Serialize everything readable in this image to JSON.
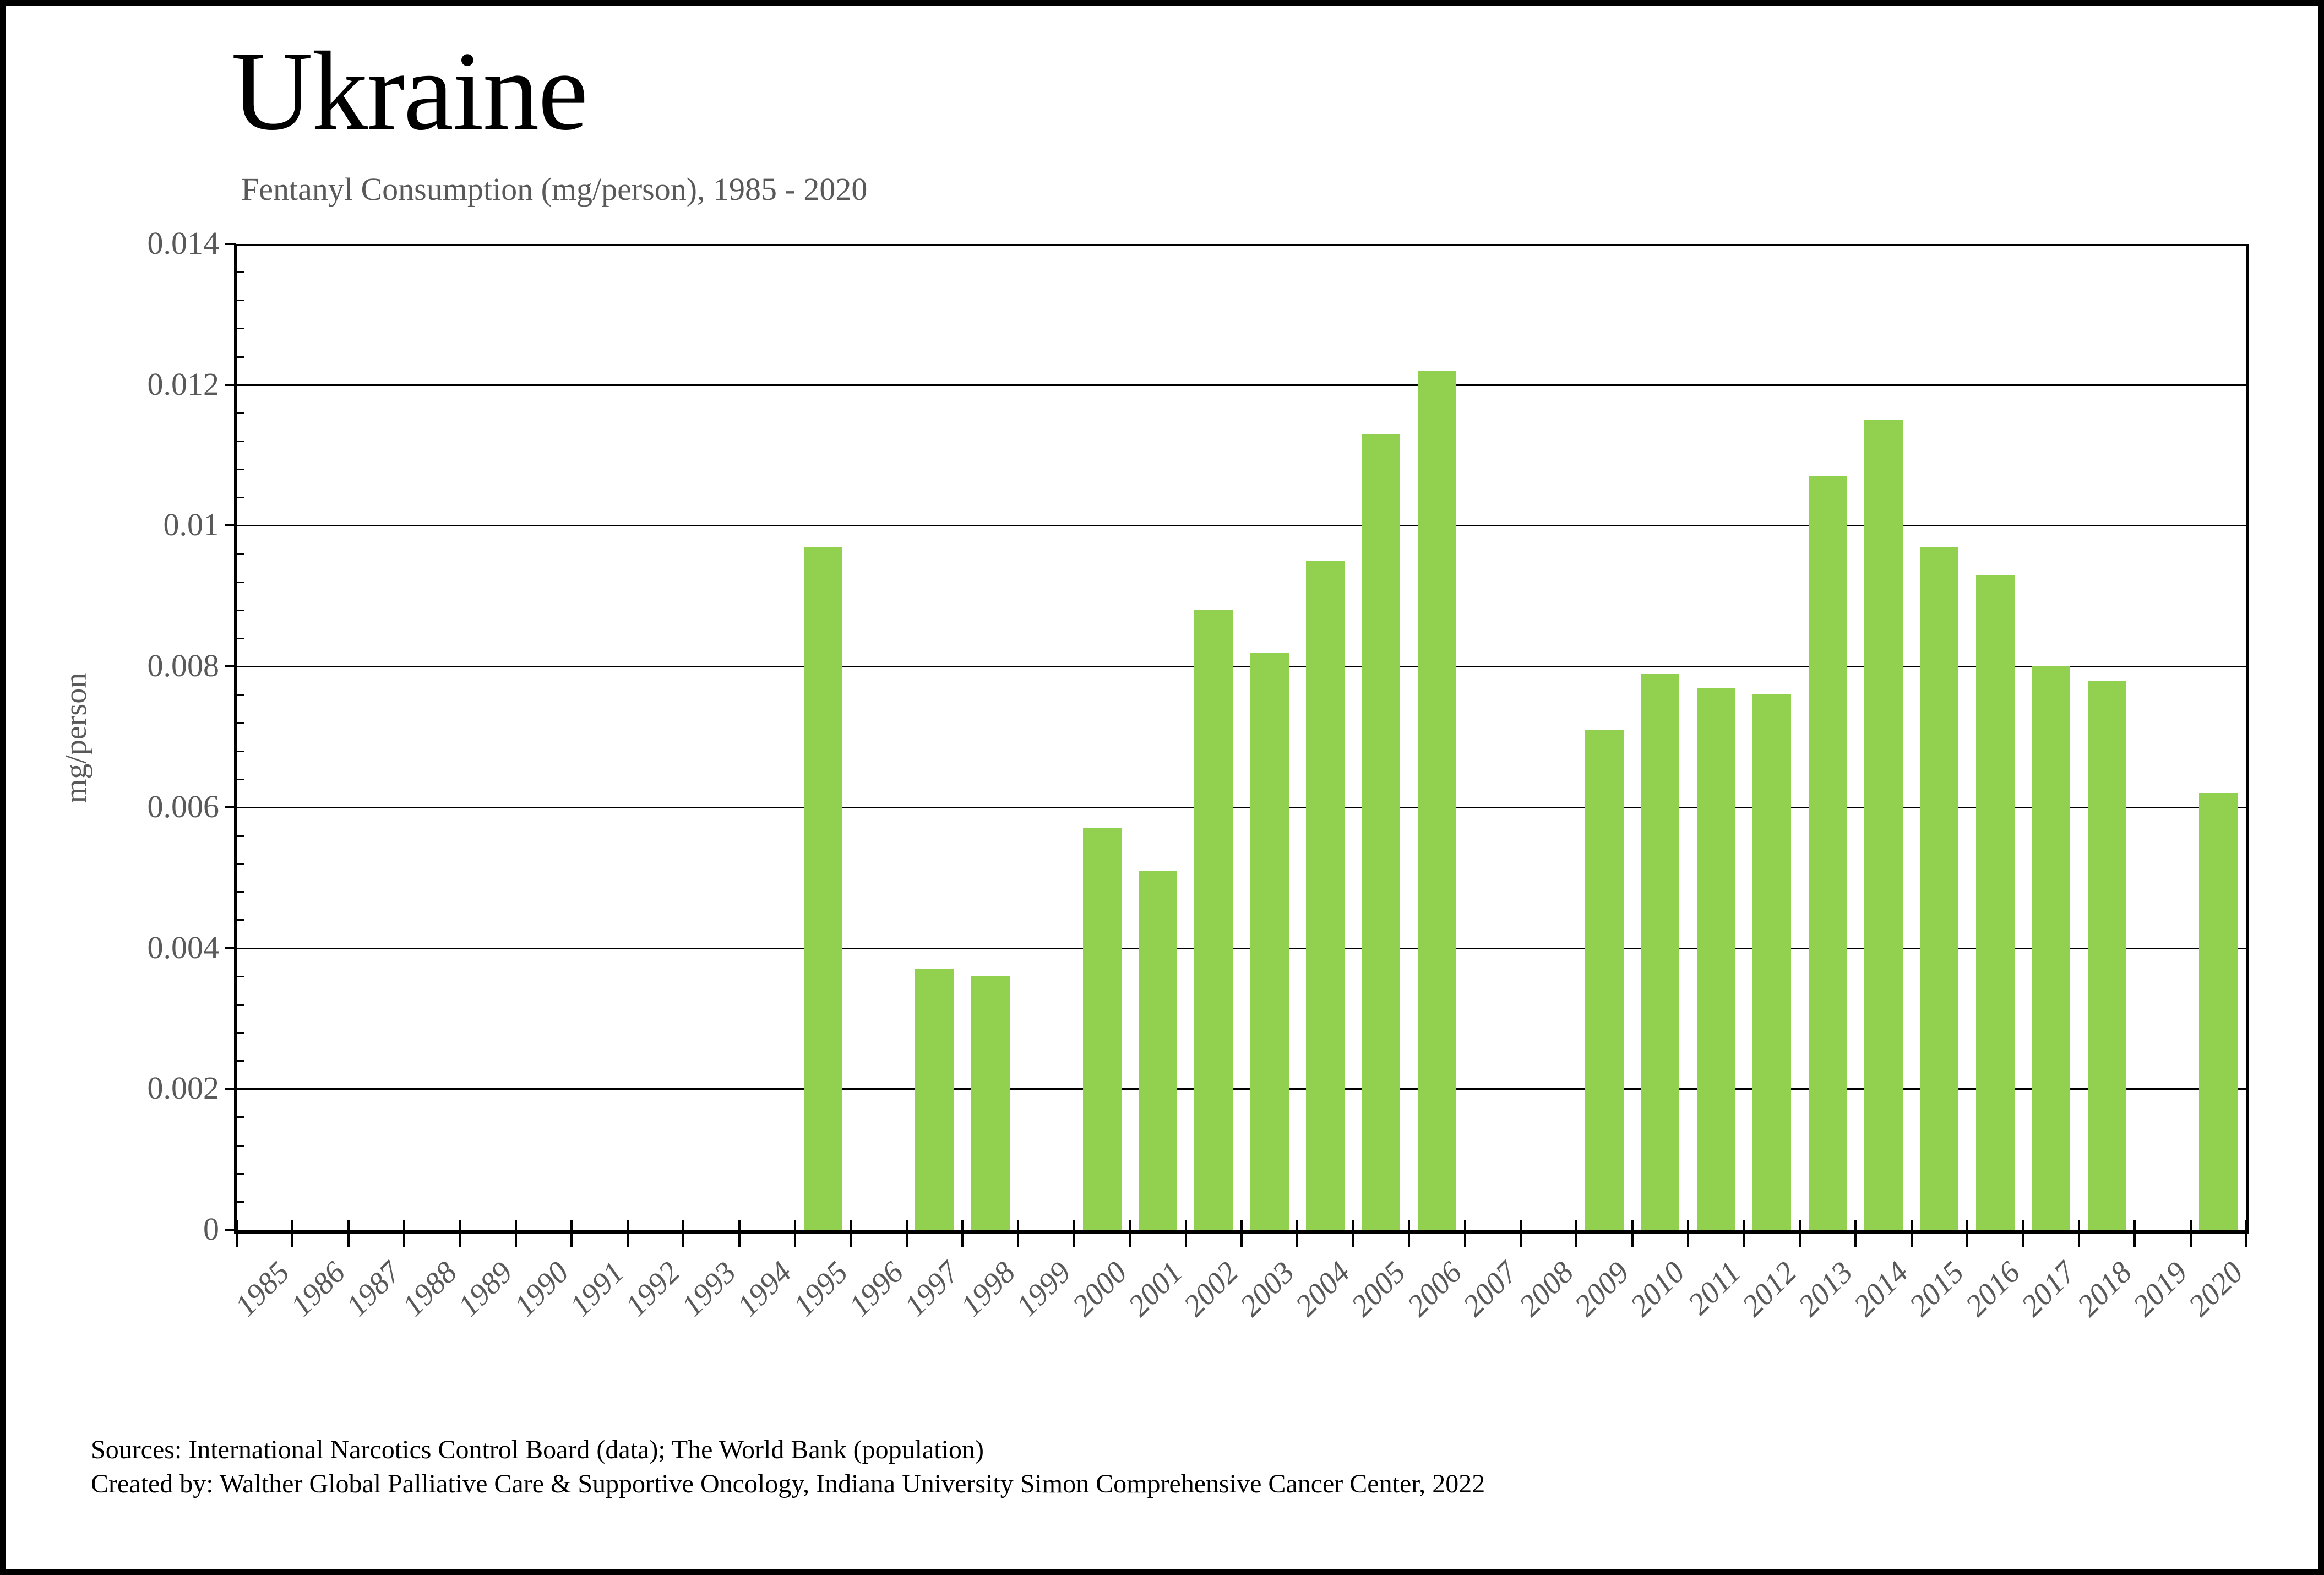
{
  "header": {
    "title": "Ukraine",
    "subtitle": "Fentanyl Consumption (mg/person), 1985 - 2020"
  },
  "chart_data": {
    "type": "bar",
    "title": "Ukraine",
    "subtitle": "Fentanyl Consumption (mg/person), 1985 - 2020",
    "xlabel": "",
    "ylabel": "mg/person",
    "ylim": [
      0,
      0.014
    ],
    "ytick_interval": 0.002,
    "ytick_labels": [
      "0",
      "0.002",
      "0.004",
      "0.006",
      "0.008",
      "0.01",
      "0.012",
      "0.014"
    ],
    "y_minor_tick_interval": 0.0004,
    "grid": "horizontal",
    "legend": "none",
    "bar_color": "#92D050",
    "categories": [
      1985,
      1986,
      1987,
      1988,
      1989,
      1990,
      1991,
      1992,
      1993,
      1994,
      1995,
      1996,
      1997,
      1998,
      1999,
      2000,
      2001,
      2002,
      2003,
      2004,
      2005,
      2006,
      2007,
      2008,
      2009,
      2010,
      2011,
      2012,
      2013,
      2014,
      2015,
      2016,
      2017,
      2018,
      2019,
      2020
    ],
    "values": [
      0,
      0,
      0,
      0,
      0,
      0,
      0,
      0,
      0,
      0,
      0.0097,
      0,
      0.0037,
      0.0036,
      0,
      0.0057,
      0.0051,
      0.0088,
      0.0082,
      0.0095,
      0.0113,
      0.0122,
      0,
      0,
      0.0071,
      0.0079,
      0.0077,
      0.0076,
      0.0107,
      0.0115,
      0.0097,
      0.0093,
      0.008,
      0.0078,
      0,
      0.0062
    ]
  },
  "footer": {
    "sources": "Sources: International Narcotics Control Board (data); The World Bank (population)",
    "credit": "Created by: Walther Global Palliative Care & Supportive Oncology, Indiana University Simon Comprehensive Cancer Center, 2022"
  },
  "colors": {
    "bar": "#92D050",
    "axis": "#000000",
    "muted_text": "#595959",
    "background": "#FFFFFF"
  }
}
